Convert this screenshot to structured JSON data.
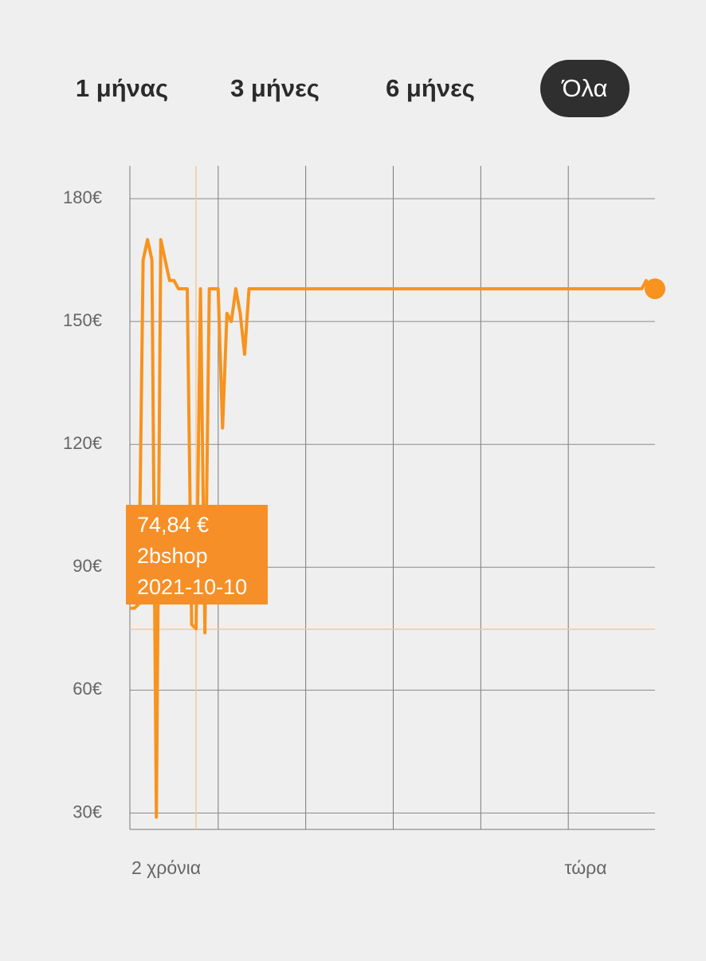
{
  "tabs": {
    "items": [
      "1 μήνας",
      "3 μήνες",
      "6 μήνες",
      "Όλα"
    ],
    "active": 3
  },
  "chart_data": {
    "type": "line",
    "values": [
      80,
      80,
      81,
      165,
      170,
      165,
      29,
      170,
      165,
      160,
      160,
      158,
      158,
      158,
      76,
      75,
      158,
      74,
      158,
      158,
      158,
      124,
      152,
      150,
      158,
      152,
      142,
      158,
      158,
      158,
      158,
      158,
      158,
      158,
      158,
      158,
      158,
      158,
      158,
      158,
      158,
      158,
      158,
      158,
      158,
      158,
      158,
      158,
      158,
      158,
      158,
      158,
      158,
      158,
      158,
      158,
      158,
      158,
      158,
      158,
      158,
      158,
      158,
      158,
      158,
      158,
      158,
      158,
      158,
      158,
      158,
      158,
      158,
      158,
      158,
      158,
      158,
      158,
      158,
      158,
      158,
      158,
      158,
      158,
      158,
      158,
      158,
      158,
      158,
      158,
      158,
      158,
      158,
      158,
      158,
      158,
      158,
      158,
      158,
      158,
      158,
      158,
      158,
      158,
      158,
      158,
      158,
      158,
      158,
      158,
      158,
      158,
      158,
      158,
      158,
      158,
      158,
      160,
      158,
      158
    ],
    "color": "#f7931e",
    "ylim": [
      26,
      188
    ],
    "yticks": [
      {
        "value": 30,
        "label": "30€"
      },
      {
        "value": 60,
        "label": "60€"
      },
      {
        "value": 90,
        "label": "90€"
      },
      {
        "value": 120,
        "label": "120€"
      },
      {
        "value": 150,
        "label": "150€"
      },
      {
        "value": 180,
        "label": "180€"
      }
    ],
    "x_labels": [
      "2 χρόνια",
      "τώρα"
    ],
    "grid": true,
    "tooltip": {
      "value": 74.84,
      "label": "74,84 €",
      "shop": "2bshop",
      "date": "2021-10-10"
    }
  }
}
